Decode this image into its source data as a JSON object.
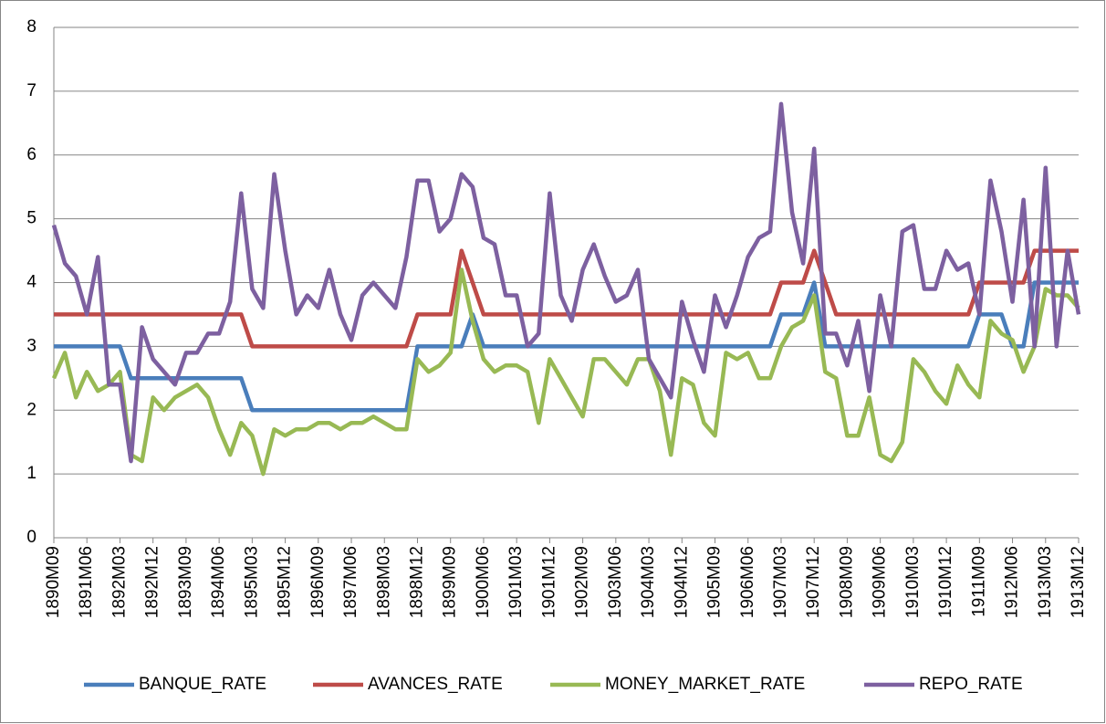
{
  "chart_data": {
    "type": "line",
    "categories": [
      "1890M09",
      null,
      null,
      "1891M06",
      null,
      null,
      "1892M03",
      null,
      null,
      "1892M12",
      null,
      null,
      "1893M09",
      null,
      null,
      "1894M06",
      null,
      null,
      "1895M03",
      null,
      null,
      "1895M12",
      null,
      null,
      "1896M09",
      null,
      null,
      "1897M06",
      null,
      null,
      "1898M03",
      null,
      null,
      "1898M12",
      null,
      null,
      "1899M09",
      null,
      null,
      "1900M06",
      null,
      null,
      "1901M03",
      null,
      null,
      "1901M12",
      null,
      null,
      "1902M09",
      null,
      null,
      "1903M06",
      null,
      null,
      "1904M03",
      null,
      null,
      "1904M12",
      null,
      null,
      "1905M09",
      null,
      null,
      "1906M06",
      null,
      null,
      "1907M03",
      null,
      null,
      "1907M12",
      null,
      null,
      "1908M09",
      null,
      null,
      "1909M06",
      null,
      null,
      "1910M03",
      null,
      null,
      "1910M12",
      null,
      null,
      "1911M09",
      null,
      null,
      "1912M06",
      null,
      null,
      "1913M03",
      null,
      null,
      "1913M12"
    ],
    "series": [
      {
        "name": "BANQUE_RATE",
        "color": "#4a7ebb",
        "values": [
          3,
          3,
          3,
          3,
          3,
          3,
          3,
          2.5,
          2.5,
          2.5,
          2.5,
          2.5,
          2.5,
          2.5,
          2.5,
          2.5,
          2.5,
          2.5,
          2,
          2,
          2,
          2,
          2,
          2,
          2,
          2,
          2,
          2,
          2,
          2,
          2,
          2,
          2,
          3,
          3,
          3,
          3,
          3,
          3.5,
          3,
          3,
          3,
          3,
          3,
          3,
          3,
          3,
          3,
          3,
          3,
          3,
          3,
          3,
          3,
          3,
          3,
          3,
          3,
          3,
          3,
          3,
          3,
          3,
          3,
          3,
          3,
          3.5,
          3.5,
          3.5,
          4,
          3,
          3,
          3,
          3,
          3,
          3,
          3,
          3,
          3,
          3,
          3,
          3,
          3,
          3,
          3.5,
          3.5,
          3.5,
          3,
          3,
          4,
          4,
          4,
          4,
          4
        ]
      },
      {
        "name": "AVANCES_RATE",
        "color": "#be4b48",
        "values": [
          3.5,
          3.5,
          3.5,
          3.5,
          3.5,
          3.5,
          3.5,
          3.5,
          3.5,
          3.5,
          3.5,
          3.5,
          3.5,
          3.5,
          3.5,
          3.5,
          3.5,
          3.5,
          3,
          3,
          3,
          3,
          3,
          3,
          3,
          3,
          3,
          3,
          3,
          3,
          3,
          3,
          3,
          3.5,
          3.5,
          3.5,
          3.5,
          4.5,
          4,
          3.5,
          3.5,
          3.5,
          3.5,
          3.5,
          3.5,
          3.5,
          3.5,
          3.5,
          3.5,
          3.5,
          3.5,
          3.5,
          3.5,
          3.5,
          3.5,
          3.5,
          3.5,
          3.5,
          3.5,
          3.5,
          3.5,
          3.5,
          3.5,
          3.5,
          3.5,
          3.5,
          4,
          4,
          4,
          4.5,
          4,
          3.5,
          3.5,
          3.5,
          3.5,
          3.5,
          3.5,
          3.5,
          3.5,
          3.5,
          3.5,
          3.5,
          3.5,
          3.5,
          4,
          4,
          4,
          4,
          4,
          4.5,
          4.5,
          4.5,
          4.5,
          4.5
        ]
      },
      {
        "name": "MONEY_MARKET_RATE",
        "color": "#98b954",
        "values": [
          2.5,
          2.9,
          2.2,
          2.6,
          2.3,
          2.4,
          2.6,
          1.3,
          1.2,
          2.2,
          2.0,
          2.2,
          2.3,
          2.4,
          2.2,
          1.7,
          1.3,
          1.8,
          1.6,
          1.0,
          1.7,
          1.6,
          1.7,
          1.7,
          1.8,
          1.8,
          1.7,
          1.8,
          1.8,
          1.9,
          1.8,
          1.7,
          1.7,
          2.8,
          2.6,
          2.7,
          2.9,
          4.2,
          3.4,
          2.8,
          2.6,
          2.7,
          2.7,
          2.6,
          1.8,
          2.8,
          2.5,
          2.2,
          1.9,
          2.8,
          2.8,
          2.6,
          2.4,
          2.8,
          2.8,
          2.3,
          1.3,
          2.5,
          2.4,
          1.8,
          1.6,
          2.9,
          2.8,
          2.9,
          2.5,
          2.5,
          3.0,
          3.3,
          3.4,
          3.8,
          2.6,
          2.5,
          1.6,
          1.6,
          2.2,
          1.3,
          1.2,
          1.5,
          2.8,
          2.6,
          2.3,
          2.1,
          2.7,
          2.4,
          2.2,
          3.4,
          3.2,
          3.1,
          2.6,
          3.0,
          3.9,
          3.8,
          3.8,
          3.6
        ]
      },
      {
        "name": "REPO_RATE",
        "color": "#7d60a0",
        "values": [
          4.9,
          4.3,
          4.1,
          3.5,
          4.4,
          2.4,
          2.4,
          1.2,
          3.3,
          2.8,
          2.6,
          2.4,
          2.9,
          2.9,
          3.2,
          3.2,
          3.7,
          5.4,
          3.9,
          3.6,
          5.7,
          4.5,
          3.5,
          3.8,
          3.6,
          4.2,
          3.5,
          3.1,
          3.8,
          4.0,
          3.8,
          3.6,
          4.4,
          5.6,
          5.6,
          4.8,
          5.0,
          5.7,
          5.5,
          4.7,
          4.6,
          3.8,
          3.8,
          3.0,
          3.2,
          5.4,
          3.8,
          3.4,
          4.2,
          4.6,
          4.1,
          3.7,
          3.8,
          4.2,
          2.8,
          2.5,
          2.2,
          3.7,
          3.1,
          2.6,
          3.8,
          3.3,
          3.8,
          4.4,
          4.7,
          4.8,
          6.8,
          5.1,
          4.3,
          6.1,
          3.2,
          3.2,
          2.7,
          3.4,
          2.3,
          3.8,
          3.0,
          4.8,
          4.9,
          3.9,
          3.9,
          4.5,
          4.2,
          4.3,
          3.5,
          5.6,
          4.8,
          3.7,
          5.3,
          3.0,
          5.8,
          3.0,
          4.5,
          3.5
        ]
      }
    ],
    "ylim": [
      0,
      8
    ],
    "yticks": [
      0,
      1,
      2,
      3,
      4,
      5,
      6,
      7,
      8
    ],
    "grid": true,
    "legend": "bottom"
  }
}
